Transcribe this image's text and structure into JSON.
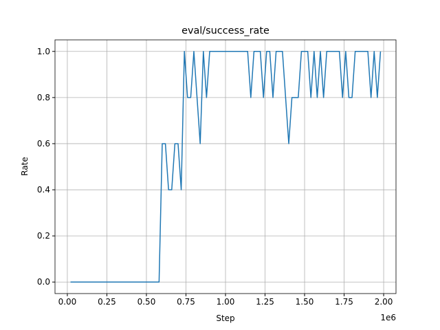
{
  "chart_data": {
    "type": "line",
    "title": "eval/success_rate",
    "x_label": "Step",
    "y_label": "Rate",
    "x_offset_label": "1e6",
    "x": [
      20000,
      40000,
      60000,
      80000,
      100000,
      120000,
      140000,
      160000,
      180000,
      200000,
      220000,
      240000,
      260000,
      280000,
      300000,
      320000,
      340000,
      360000,
      380000,
      400000,
      420000,
      440000,
      460000,
      480000,
      500000,
      520000,
      540000,
      560000,
      580000,
      600000,
      620000,
      640000,
      660000,
      680000,
      700000,
      720000,
      740000,
      760000,
      780000,
      800000,
      820000,
      840000,
      860000,
      880000,
      900000,
      920000,
      940000,
      960000,
      980000,
      1000000,
      1020000,
      1040000,
      1060000,
      1080000,
      1100000,
      1120000,
      1140000,
      1160000,
      1180000,
      1200000,
      1220000,
      1240000,
      1260000,
      1280000,
      1300000,
      1320000,
      1340000,
      1360000,
      1380000,
      1400000,
      1420000,
      1440000,
      1460000,
      1480000,
      1500000,
      1520000,
      1540000,
      1560000,
      1580000,
      1600000,
      1620000,
      1640000,
      1660000,
      1680000,
      1700000,
      1720000,
      1740000,
      1760000,
      1780000,
      1800000,
      1820000,
      1840000,
      1860000,
      1880000,
      1900000,
      1920000,
      1940000,
      1960000,
      1980000
    ],
    "series": [
      {
        "color": "#1f77b4",
        "values": [
          0,
          0,
          0,
          0,
          0,
          0,
          0,
          0,
          0,
          0,
          0,
          0,
          0,
          0,
          0,
          0,
          0,
          0,
          0,
          0,
          0,
          0,
          0,
          0,
          0,
          0,
          0,
          0,
          0,
          0.6,
          0.6,
          0.4,
          0.4,
          0.6,
          0.6,
          0.4,
          1,
          0.8,
          0.8,
          1,
          0.8,
          0.6,
          1,
          0.8,
          1,
          1,
          1,
          1,
          1,
          1,
          1,
          1,
          1,
          1,
          1,
          1,
          1,
          0.8,
          1,
          1,
          1,
          0.8,
          1,
          1,
          0.8,
          1,
          1,
          1,
          0.8,
          0.6,
          0.8,
          0.8,
          0.8,
          1,
          1,
          1,
          0.8,
          1,
          0.8,
          1,
          0.8,
          1,
          1,
          1,
          1,
          1,
          0.8,
          1,
          0.8,
          0.8,
          1,
          1,
          1,
          1,
          1,
          0.8,
          1,
          0.8,
          1
        ]
      }
    ],
    "xlim": [
      -78000,
      2078000
    ],
    "ylim": [
      -0.05,
      1.05
    ],
    "xticks": [
      {
        "value": 0,
        "label": "0.00"
      },
      {
        "value": 250000,
        "label": "0.25"
      },
      {
        "value": 500000,
        "label": "0.50"
      },
      {
        "value": 750000,
        "label": "0.75"
      },
      {
        "value": 1000000,
        "label": "1.00"
      },
      {
        "value": 1250000,
        "label": "1.25"
      },
      {
        "value": 1500000,
        "label": "1.50"
      },
      {
        "value": 1750000,
        "label": "1.75"
      },
      {
        "value": 2000000,
        "label": "2.00"
      }
    ],
    "yticks": [
      {
        "value": 0,
        "label": "0.0"
      },
      {
        "value": 0.2,
        "label": "0.2"
      },
      {
        "value": 0.4,
        "label": "0.4"
      },
      {
        "value": 0.6,
        "label": "0.6"
      },
      {
        "value": 0.8,
        "label": "0.8"
      },
      {
        "value": 1,
        "label": "1.0"
      }
    ],
    "grid": true
  }
}
